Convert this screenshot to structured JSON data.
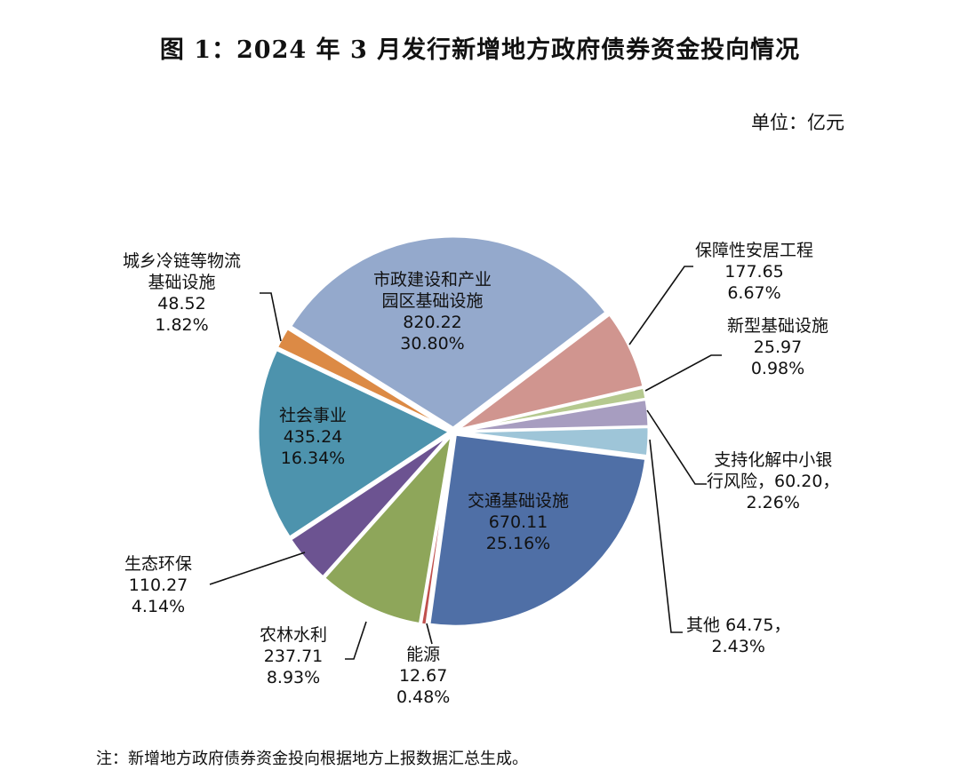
{
  "chart_data": {
    "type": "pie",
    "title": "图 1：2024 年 3 月发行新增地方政府债券资金投向情况",
    "unit": "单位：亿元",
    "note": "注：新增地方政府债券资金投向根据地方上报数据汇总生成。",
    "start_angle_deg": 302,
    "slices": [
      {
        "name": "市政建设和产业\n园区基础设施",
        "value": "820.22",
        "percent": "30.80%",
        "v": 820.22,
        "color": "#94a9cc"
      },
      {
        "name": "保障性安居工程",
        "value": "177.65",
        "percent": "6.67%",
        "v": 177.65,
        "color": "#d0958f"
      },
      {
        "name": "新型基础设施",
        "value": "25.97",
        "percent": "0.98%",
        "v": 25.97,
        "color": "#b5c98f"
      },
      {
        "name": "支持化解中小银\n行风险，",
        "value": "60.20，",
        "percent": "2.26%",
        "v": 60.2,
        "color": "#a79dc0"
      },
      {
        "name": "其他",
        "value": "64.75，",
        "percent": "2.43%",
        "v": 64.75,
        "color": "#9ec5d8"
      },
      {
        "name": "交通基础设施",
        "value": "670.11",
        "percent": "25.16%",
        "v": 670.11,
        "color": "#4f6fa6"
      },
      {
        "name": "能源",
        "value": "12.67",
        "percent": "0.48%",
        "v": 12.67,
        "color": "#c0504d"
      },
      {
        "name": "农林水利",
        "value": "237.71",
        "percent": "8.93%",
        "v": 237.71,
        "color": "#8ea65a"
      },
      {
        "name": "生态环保",
        "value": "110.27",
        "percent": "4.14%",
        "v": 110.27,
        "color": "#6c5391"
      },
      {
        "name": "社会事业",
        "value": "435.24",
        "percent": "16.34%",
        "v": 435.24,
        "color": "#4d93ad"
      },
      {
        "name": "城乡冷链等物流\n基础设施",
        "value": "48.52",
        "percent": "1.82%",
        "v": 48.52,
        "color": "#dc8a45"
      }
    ]
  }
}
